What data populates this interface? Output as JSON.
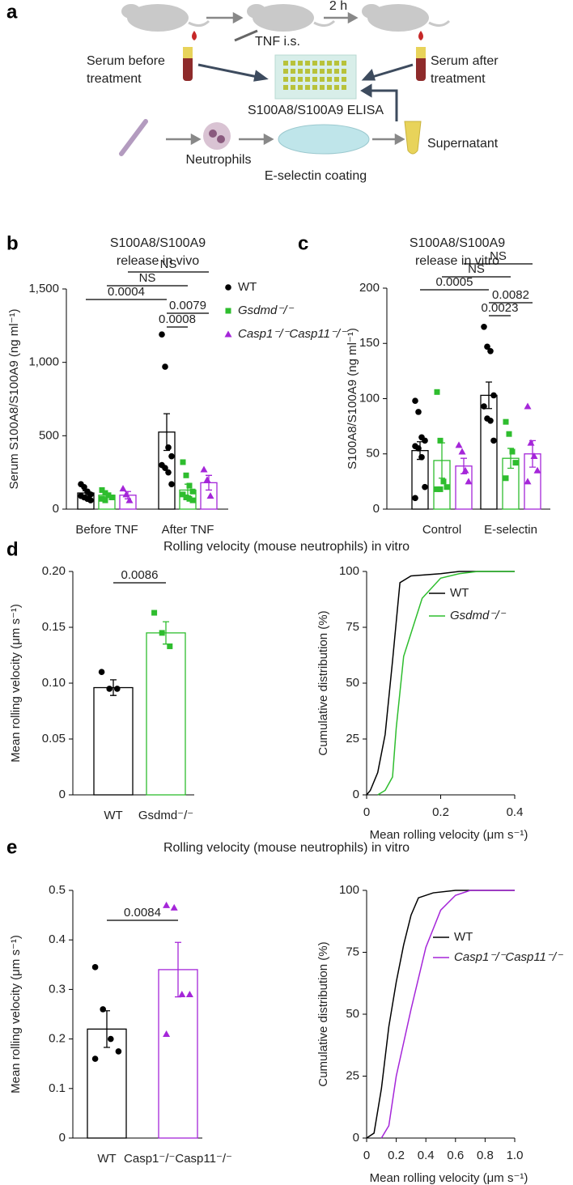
{
  "panel_a": {
    "label": "a",
    "time": "2 h",
    "injection": "TNF i.s.",
    "serum_before": [
      "Serum before",
      "treatment"
    ],
    "serum_after": [
      "Serum after",
      "treatment"
    ],
    "assay": "S100A8/S100A9 ELISA",
    "cells": "Neutrophils",
    "coating": "E-selectin coating",
    "supernatant": "Supernatant"
  },
  "chart_data": [
    {
      "panel": "b",
      "type": "bar",
      "title": [
        "S100A8/S100A9",
        "release in vivo"
      ],
      "ylabel": "Serum S100A8/S100A9 (ng ml⁻¹)",
      "categories": [
        "Before TNF",
        "After TNF"
      ],
      "ylim": [
        0,
        1500
      ],
      "yticks": [
        0,
        500,
        {
          "value": 1000,
          "label": "1,000"
        },
        {
          "value": 1500,
          "label": "1,500"
        }
      ],
      "series": [
        {
          "name": "WT",
          "color": "#000000",
          "marker": "circle",
          "values": [
            110,
            525
          ],
          "errors": [
            15,
            125
          ],
          "points": [
            [
              170,
              150,
              120,
              100,
              90,
              80,
              70,
              60
            ],
            [
              1190,
              970,
              420,
              360,
              300,
              280,
              250,
              170
            ]
          ]
        },
        {
          "name": "Gsdmd⁻/⁻",
          "color": "#2ebd2e",
          "marker": "square",
          "values": [
            95,
            130
          ],
          "errors": [
            12,
            40
          ],
          "points": [
            [
              130,
              110,
              95,
              80,
              70,
              60
            ],
            [
              320,
              230,
              160,
              120,
              100,
              80,
              70,
              60
            ]
          ]
        },
        {
          "name": "Casp1⁻/⁻Casp11⁻/⁻",
          "color": "#a526d9",
          "marker": "triangle",
          "values": [
            95,
            180
          ],
          "errors": [
            25,
            50
          ],
          "points": [
            [
              140,
              100,
              60
            ],
            [
              270,
              200,
              90
            ]
          ]
        }
      ],
      "brackets": [
        {
          "label": "0.0008",
          "from": [
            1,
            0
          ],
          "to": [
            1,
            1
          ]
        },
        {
          "label": "0.0079",
          "from": [
            1,
            0
          ],
          "to": [
            1,
            2
          ]
        },
        {
          "label": "0.0004",
          "from": [
            0,
            0
          ],
          "to": [
            1,
            0
          ]
        },
        {
          "label": "NS",
          "from": [
            0,
            1
          ],
          "to": [
            1,
            1
          ]
        },
        {
          "label": "NS",
          "from": [
            0,
            2
          ],
          "to": [
            1,
            2
          ]
        }
      ]
    },
    {
      "panel": "c",
      "type": "bar",
      "title": [
        "S100A8/S100A9",
        "release in vitro"
      ],
      "ylabel": "S100A8/S100A9 (ng ml⁻¹)",
      "categories": [
        "Control",
        "E-selectin"
      ],
      "ylim": [
        0,
        200
      ],
      "yticks": [
        0,
        50,
        100,
        150,
        200
      ],
      "series": [
        {
          "color": "#000000",
          "marker": "circle",
          "values": [
            53,
            103
          ],
          "errors": [
            8,
            12
          ],
          "points": [
            [
              98,
              88,
              65,
              62,
              57,
              55,
              47,
              20,
              10
            ],
            [
              165,
              147,
              143,
              103,
              93,
              82,
              80,
              62
            ]
          ]
        },
        {
          "color": "#2ebd2e",
          "marker": "square",
          "values": [
            44,
            46
          ],
          "errors": [
            16,
            9
          ],
          "points": [
            [
              106,
              62,
              25,
              20,
              18,
              18
            ],
            [
              79,
              68,
              52,
              42,
              28
            ]
          ]
        },
        {
          "color": "#a526d9",
          "marker": "triangle",
          "values": [
            39,
            50
          ],
          "errors": [
            7,
            12
          ],
          "points": [
            [
              58,
              52,
              35,
              25
            ],
            [
              93,
              60,
              48,
              35,
              25
            ]
          ]
        }
      ],
      "brackets": [
        {
          "label": "0.0023",
          "from": [
            1,
            0
          ],
          "to": [
            1,
            1
          ]
        },
        {
          "label": "0.0082",
          "from": [
            1,
            0
          ],
          "to": [
            1,
            2
          ]
        },
        {
          "label": "0.0005",
          "from": [
            0,
            0
          ],
          "to": [
            1,
            0
          ]
        },
        {
          "label": "NS",
          "from": [
            0,
            1
          ],
          "to": [
            1,
            1
          ]
        },
        {
          "label": "NS",
          "from": [
            0,
            2
          ],
          "to": [
            1,
            2
          ]
        }
      ]
    },
    {
      "panel": "d",
      "type": "bar",
      "title": "Rolling velocity (mouse neutrophils) in vitro",
      "ylabel": "Mean rolling velocity (μm s⁻¹)",
      "categories": [
        "WT",
        "Gsdmd⁻/⁻"
      ],
      "colors": [
        "#000000",
        "#2ebd2e"
      ],
      "markers": [
        "circle",
        "square"
      ],
      "values": [
        0.096,
        0.145
      ],
      "errors": [
        0.007,
        0.01
      ],
      "points": [
        [
          0.11,
          0.095,
          0.095
        ],
        [
          0.163,
          0.145,
          0.133
        ]
      ],
      "ylim": [
        0,
        0.2
      ],
      "yticks": [
        0,
        0.05,
        {
          "value": 0.1,
          "label": "0.10"
        },
        0.15,
        {
          "value": 0.2,
          "label": "0.20"
        }
      ],
      "brackets": [
        {
          "label": "0.0086",
          "from": [
            0
          ],
          "to": [
            1
          ]
        }
      ]
    },
    {
      "type": "line",
      "xlabel": "Mean rolling velocity (μm s⁻¹)",
      "ylabel": "Cumulative distribution (%)",
      "xlim": [
        0,
        0.4
      ],
      "xticks": [
        0,
        0.2,
        0.4
      ],
      "ylim": [
        0,
        100
      ],
      "yticks": [
        0,
        25,
        50,
        75,
        100
      ],
      "series": [
        {
          "name": "WT",
          "color": "#000000",
          "x": [
            0,
            0.01,
            0.03,
            0.05,
            0.07,
            0.09,
            0.12,
            0.2,
            0.25,
            0.4
          ],
          "values": [
            0,
            2,
            10,
            27,
            60,
            95,
            98,
            99,
            100,
            100
          ]
        },
        {
          "name": "Gsdmd⁻/⁻",
          "color": "#2ebd2e",
          "x": [
            0.03,
            0.05,
            0.07,
            0.08,
            0.1,
            0.15,
            0.2,
            0.25,
            0.3,
            0.4
          ],
          "values": [
            0,
            2,
            8,
            30,
            62,
            88,
            97,
            99,
            100,
            100
          ]
        }
      ]
    },
    {
      "panel": "e",
      "type": "bar",
      "title": "Rolling velocity (mouse neutrophils) in vitro",
      "ylabel": "Mean rolling velocity (μm s⁻¹)",
      "categories": [
        "WT",
        "Casp1⁻/⁻Casp11⁻/⁻"
      ],
      "colors": [
        "#000000",
        "#a526d9"
      ],
      "markers": [
        "circle",
        "triangle"
      ],
      "values": [
        0.22,
        0.34
      ],
      "errors": [
        0.037,
        0.055
      ],
      "points": [
        [
          0.345,
          0.26,
          0.2,
          0.175,
          0.16
        ],
        [
          0.47,
          0.465,
          0.29,
          0.29,
          0.21
        ]
      ],
      "ylim": [
        0,
        0.5
      ],
      "yticks": [
        0,
        0.1,
        0.2,
        0.3,
        0.4,
        0.5
      ],
      "brackets": [
        {
          "label": "0.0084",
          "from": [
            0
          ],
          "to": [
            1
          ]
        }
      ]
    },
    {
      "type": "line",
      "xlabel": "Mean rolling velocity (μm s⁻¹)",
      "ylabel": "Cumulative distribution (%)",
      "xlim": [
        0,
        1
      ],
      "xticks": [
        0,
        0.2,
        0.4,
        0.6,
        0.8,
        {
          "value": 1,
          "label": "1.0"
        }
      ],
      "ylim": [
        0,
        100
      ],
      "yticks": [
        0,
        25,
        50,
        75,
        100
      ],
      "series": [
        {
          "name": "WT",
          "color": "#000000",
          "x": [
            0,
            0.05,
            0.1,
            0.15,
            0.2,
            0.25,
            0.3,
            0.35,
            0.45,
            0.6,
            1
          ],
          "values": [
            0,
            2,
            20,
            45,
            63,
            78,
            90,
            97,
            99,
            100,
            100
          ]
        },
        {
          "name": "Casp1⁻/⁻Casp11⁻/⁻",
          "color": "#a526d9",
          "x": [
            0.1,
            0.15,
            0.2,
            0.3,
            0.4,
            0.5,
            0.6,
            0.7,
            1
          ],
          "values": [
            0,
            5,
            25,
            52,
            77,
            92,
            98,
            100,
            100
          ]
        }
      ]
    }
  ]
}
